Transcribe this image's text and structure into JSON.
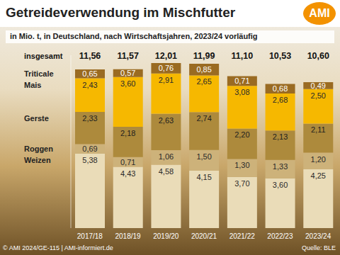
{
  "chart_data": {
    "type": "bar",
    "title": "Getreideverwendung im Mischfutter",
    "subtitle": "in Mio. t, in Deutschland, nach Wirtschaftsjahren, 2023/24 vorläufig",
    "logo": "AMI",
    "copyright": "© AMI 2024/GE-115 | AMI-informiert.de",
    "source": "Quelle: BLE",
    "categories": [
      "2017/18",
      "2018/19",
      "2019/20",
      "2020/21",
      "2021/22",
      "2022/23",
      "2023/24"
    ],
    "series": [
      {
        "name": "Weizen",
        "color": "#eadcb8",
        "values": [
          5.38,
          4.43,
          4.58,
          4.15,
          3.7,
          3.6,
          4.25
        ],
        "value_labels": [
          "5,38",
          "4,43",
          "4,58",
          "4,15",
          "3,70",
          "3,60",
          "4,25"
        ]
      },
      {
        "name": "Roggen",
        "color": "#cdb27a",
        "values": [
          0.69,
          0.71,
          1.06,
          1.5,
          1.3,
          1.33,
          1.2
        ],
        "value_labels": [
          "0,69",
          "0,71",
          "1,06",
          "1,50",
          "1,30",
          "1,33",
          "1,20"
        ]
      },
      {
        "name": "Gerste",
        "color": "#ad8a3c",
        "values": [
          2.33,
          2.18,
          2.63,
          2.74,
          2.2,
          2.13,
          2.11
        ],
        "value_labels": [
          "2,33",
          "2,18",
          "2,63",
          "2,74",
          "2,20",
          "2,13",
          "2,11"
        ]
      },
      {
        "name": "Mais",
        "color": "#f6b800",
        "values": [
          2.43,
          3.6,
          2.91,
          2.65,
          3.08,
          2.68,
          2.5
        ],
        "value_labels": [
          "2,43",
          "3,60",
          "2,91",
          "2,65",
          "3,08",
          "2,68",
          "2,50"
        ]
      },
      {
        "name": "Triticale",
        "color": "#9a6b22",
        "values": [
          0.65,
          0.57,
          0.76,
          0.85,
          0.71,
          0.68,
          0.49
        ],
        "value_labels": [
          "0,65",
          "0,57",
          "0,76",
          "0,85",
          "0,71",
          "0,68",
          "0,49"
        ]
      }
    ],
    "totals": {
      "label": "insgesamt",
      "values": [
        11.56,
        11.57,
        12.01,
        11.99,
        11.1,
        10.53,
        10.6
      ],
      "value_labels": [
        "11,56",
        "11,57",
        "12,01",
        "11,99",
        "11,10",
        "10,53",
        "10,60"
      ]
    },
    "ylim": [
      0,
      12.5
    ],
    "stacked": true,
    "data_labels": true,
    "tick_labels": "x",
    "grid": false
  }
}
